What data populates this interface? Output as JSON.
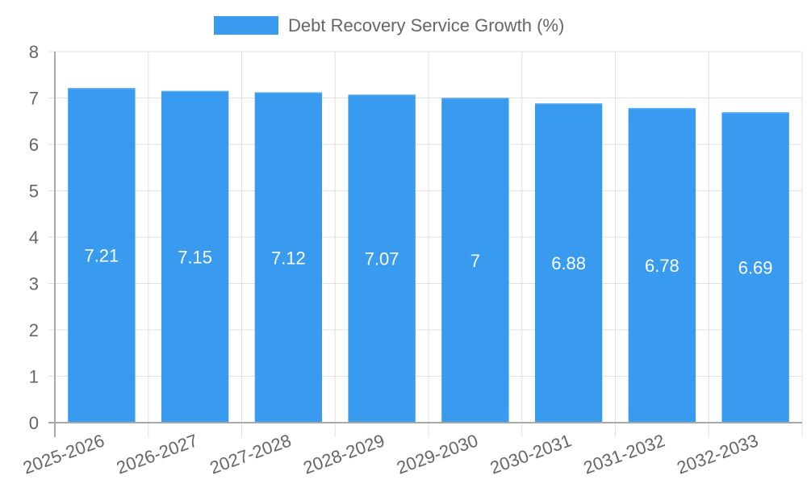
{
  "chart_data": {
    "type": "bar",
    "title": "",
    "legend": {
      "position": "top",
      "entries": [
        {
          "label": "Debt Recovery Service Growth (%)",
          "color": "#389BF0"
        }
      ]
    },
    "categories": [
      "2025-2026",
      "2026-2027",
      "2027-2028",
      "2028-2029",
      "2029-2030",
      "2030-2031",
      "2031-2032",
      "2032-2033"
    ],
    "series": [
      {
        "name": "Debt Recovery Service Growth (%)",
        "values": [
          7.21,
          7.15,
          7.12,
          7.07,
          7,
          6.88,
          6.78,
          6.69
        ],
        "color": "#389BF0"
      }
    ],
    "data_labels": [
      "7.21",
      "7.15",
      "7.12",
      "7.07",
      "7",
      "6.88",
      "6.78",
      "6.69"
    ],
    "xlabel": "",
    "ylabel": "",
    "ylim": [
      0,
      8
    ],
    "yticks": [
      0,
      1,
      2,
      3,
      4,
      5,
      6,
      7,
      8
    ],
    "grid": true,
    "x_label_rotation": -20
  },
  "colors": {
    "bar": "#389BF0",
    "bar_border": "#5aadf3",
    "grid": "#e0e0e0",
    "axis": "#a8a8a8",
    "tick_text": "#666666",
    "data_label": "#ffffff"
  }
}
